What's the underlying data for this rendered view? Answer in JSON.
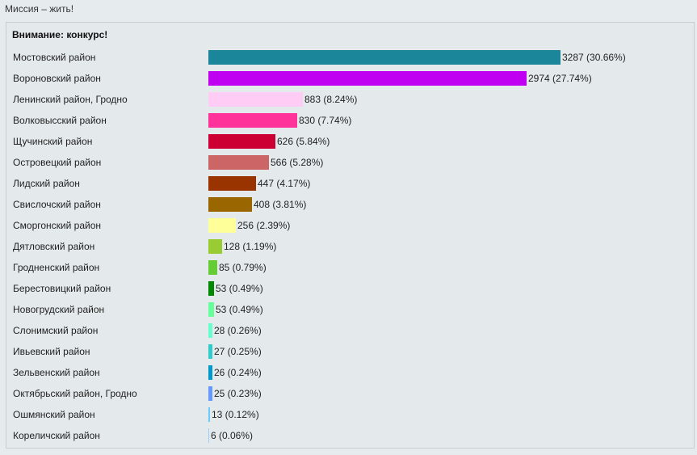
{
  "page": {
    "title": "Миссия – жить!"
  },
  "poll": {
    "heading": "Внимание: конкурс!"
  },
  "chart_data": {
    "type": "bar",
    "orientation": "horizontal",
    "categories": [
      "Мостовский район",
      "Вороновский район",
      "Ленинский район, Гродно",
      "Волковысский район",
      "Щучинский район",
      "Островецкий район",
      "Лидский район",
      "Свислочский район",
      "Сморгонский район",
      "Дятловский район",
      "Гродненский район",
      "Берестовицкий район",
      "Новогрудский район",
      "Слонимский район",
      "Ивьевский район",
      "Зельвенский район",
      "Октябрьский район, Гродно",
      "Ошмянский район",
      "Кореличский район"
    ],
    "values": [
      3287,
      2974,
      883,
      830,
      626,
      566,
      447,
      408,
      256,
      128,
      85,
      53,
      53,
      28,
      27,
      26,
      25,
      13,
      6
    ],
    "value_labels": [
      "3287 (30.66%)",
      "2974 (27.74%)",
      "883 (8.24%)",
      "830 (7.74%)",
      "626 (5.84%)",
      "566 (5.28%)",
      "447 (4.17%)",
      "408 (3.81%)",
      "256 (2.39%)",
      "128 (1.19%)",
      "85 (0.79%)",
      "53 (0.49%)",
      "53 (0.49%)",
      "28 (0.26%)",
      "27 (0.25%)",
      "26 (0.24%)",
      "25 (0.23%)",
      "13 (0.12%)",
      "6 (0.06%)"
    ],
    "colors": [
      "#1b8599",
      "#c000f0",
      "#ffccf6",
      "#ff3399",
      "#cc0033",
      "#cc6666",
      "#993300",
      "#996600",
      "#ffff99",
      "#99cc33",
      "#66cc33",
      "#008800",
      "#66ff99",
      "#66ffcc",
      "#33cccc",
      "#0099cc",
      "#6699ff",
      "#66ccff",
      "#99ccff"
    ],
    "xlim": [
      0,
      3287
    ],
    "grid": false
  }
}
